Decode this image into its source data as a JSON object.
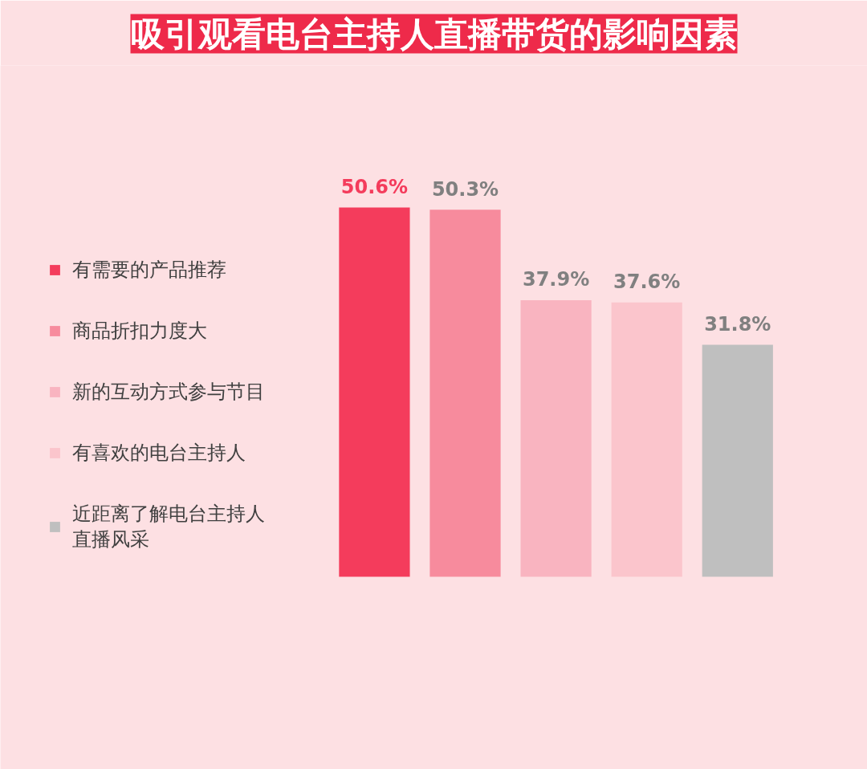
{
  "chart_data": {
    "type": "bar",
    "title": "吸引观看电台主持人直播带货的影响因素",
    "categories": [
      null
    ],
    "series": [
      {
        "name": "有需要的产品推荐",
        "color": "#f43c5c",
        "values": [
          50.6
        ],
        "value_labels": [
          "50.6%"
        ]
      },
      {
        "name": "商品折扣力度大",
        "color": "#f78b9d",
        "values": [
          50.3
        ],
        "value_labels": [
          "50.3%"
        ]
      },
      {
        "name": "新的互动方式参与节目",
        "color": "#f9b4c0",
        "values": [
          37.9
        ],
        "value_labels": [
          "37.9%"
        ]
      },
      {
        "name": "有喜欢的电台主持人",
        "color": "#fbc5cc",
        "values": [
          37.6
        ],
        "value_labels": [
          "37.6%"
        ]
      },
      {
        "name": "近距离了解电台主持人直播风采",
        "color": "#bfbfbf",
        "values": [
          31.8
        ],
        "value_labels": [
          "31.8%"
        ]
      }
    ],
    "legend": "left"
  }
}
